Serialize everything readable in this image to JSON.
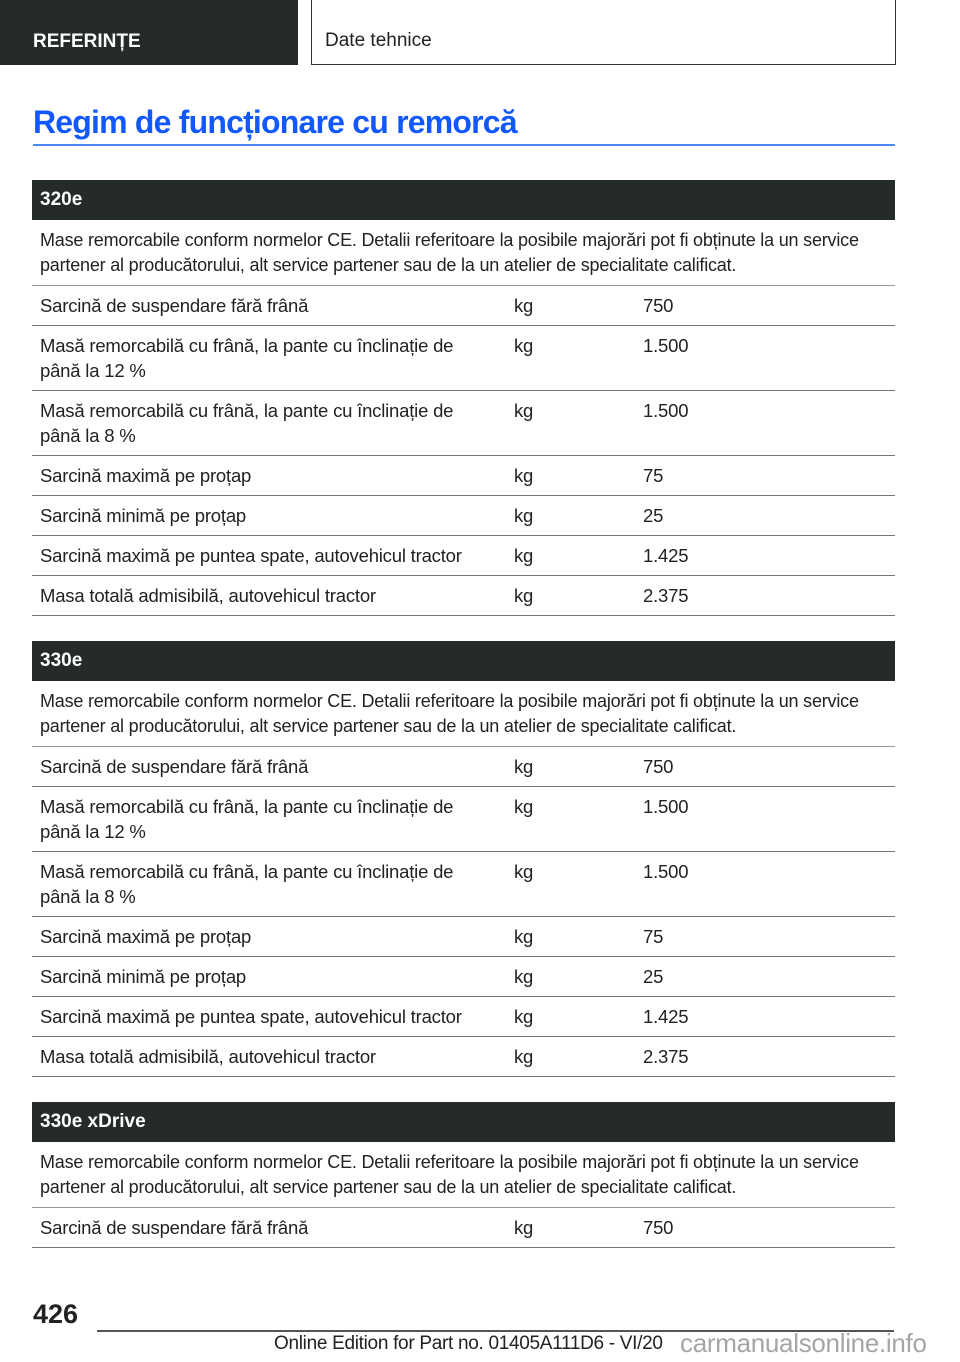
{
  "header": {
    "section": "REFERINȚE",
    "chapter": "Date tehnice"
  },
  "title": "Regim de funcționare cu remorcă",
  "sections": [
    {
      "model": "320e",
      "description": "Mase remorcabile conform normelor CE. Detalii referitoare la posibile majorări pot fi obținute la un service partener al producătorului, alt service partener sau de la un atelier de specialitate calificat.",
      "rows": [
        {
          "label": "Sarcină de suspendare fără frână",
          "unit": "kg",
          "value": "750"
        },
        {
          "label": "Masă remorcabilă cu frână, la pante cu înclinație de până la 12 %",
          "unit": "kg",
          "value": "1.500"
        },
        {
          "label": "Masă remorcabilă cu frână, la pante cu înclinație de până la 8 %",
          "unit": "kg",
          "value": "1.500"
        },
        {
          "label": "Sarcină maximă pe proțap",
          "unit": "kg",
          "value": "75"
        },
        {
          "label": "Sarcină minimă pe proțap",
          "unit": "kg",
          "value": "25"
        },
        {
          "label": "Sarcină maximă pe puntea spate, autovehicul tractor",
          "unit": "kg",
          "value": "1.425"
        },
        {
          "label": "Masa totală admisibilă, autovehicul tractor",
          "unit": "kg",
          "value": "2.375"
        }
      ]
    },
    {
      "model": "330e",
      "description": "Mase remorcabile conform normelor CE. Detalii referitoare la posibile majorări pot fi obținute la un service partener al producătorului, alt service partener sau de la un atelier de specialitate calificat.",
      "rows": [
        {
          "label": "Sarcină de suspendare fără frână",
          "unit": "kg",
          "value": "750"
        },
        {
          "label": "Masă remorcabilă cu frână, la pante cu înclinație de până la 12 %",
          "unit": "kg",
          "value": "1.500"
        },
        {
          "label": "Masă remorcabilă cu frână, la pante cu înclinație de până la 8 %",
          "unit": "kg",
          "value": "1.500"
        },
        {
          "label": "Sarcină maximă pe proțap",
          "unit": "kg",
          "value": "75"
        },
        {
          "label": "Sarcină minimă pe proțap",
          "unit": "kg",
          "value": "25"
        },
        {
          "label": "Sarcină maximă pe puntea spate, autovehicul tractor",
          "unit": "kg",
          "value": "1.425"
        },
        {
          "label": "Masa totală admisibilă, autovehicul tractor",
          "unit": "kg",
          "value": "2.375"
        }
      ]
    },
    {
      "model": "330e xDrive",
      "description": "Mase remorcabile conform normelor CE. Detalii referitoare la posibile majorări pot fi obținute la un service partener al producătorului, alt service partener sau de la un atelier de specialitate calificat.",
      "rows": [
        {
          "label": "Sarcină de suspendare fără frână",
          "unit": "kg",
          "value": "750"
        }
      ]
    }
  ],
  "footer": {
    "page_number": "426",
    "edition": "Online Edition for Part no. 01405A111D6 - VI/20",
    "watermark": "carmanualsonline.info"
  },
  "colors": {
    "title": "#1258ff",
    "header_bg": "#252a2a"
  }
}
